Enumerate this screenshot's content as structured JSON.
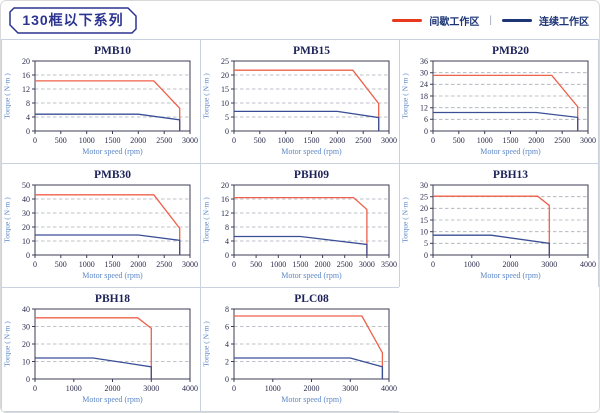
{
  "header": {
    "title": "130框以下系列",
    "legend": [
      {
        "label": "间歇工作区",
        "color": "#e8391d"
      },
      {
        "label": "连续工作区",
        "color": "#1d3575"
      }
    ],
    "legend_separator": "|"
  },
  "colors": {
    "intermittent_line": "#ee614a",
    "continuous_line": "#3a4e96",
    "grid": "#a8aeb6",
    "axis": "#3c3c55",
    "tick_text": "#2c2c4e",
    "axis_label": "#5b87c5",
    "title_text": "#1c2258",
    "panel_border": "#c9d2e0",
    "badge_border": "#2b3490"
  },
  "chart_data": [
    {
      "type": "line",
      "title": "PMB10",
      "xlabel": "Motor speed (rpm)",
      "ylabel": "Torque ( N·m )",
      "xlim": [
        0,
        3000
      ],
      "ylim": [
        0,
        20
      ],
      "xticks": [
        0,
        500,
        1000,
        1500,
        2000,
        2500,
        3000
      ],
      "yticks": [
        0,
        4,
        8,
        12,
        16,
        20
      ],
      "grid": "horizontal-dashed",
      "legend_position": "none",
      "series": [
        {
          "name": "间歇工作区",
          "points": [
            [
              0,
              14.3
            ],
            [
              2300,
              14.3
            ],
            [
              2800,
              6.5
            ],
            [
              2800,
              0
            ]
          ]
        },
        {
          "name": "连续工作区",
          "points": [
            [
              0,
              4.8
            ],
            [
              2000,
              4.8
            ],
            [
              2800,
              3.2
            ],
            [
              2800,
              0
            ]
          ]
        }
      ]
    },
    {
      "type": "line",
      "title": "PMB15",
      "xlabel": "Motor speed (rpm)",
      "ylabel": "Torque ( N·m )",
      "xlim": [
        0,
        3000
      ],
      "ylim": [
        0,
        25
      ],
      "xticks": [
        0,
        500,
        1000,
        1500,
        2000,
        2500,
        3000
      ],
      "yticks": [
        0,
        5,
        10,
        15,
        20,
        25
      ],
      "grid": "horizontal-dashed",
      "legend_position": "none",
      "series": [
        {
          "name": "间歇工作区",
          "points": [
            [
              0,
              21.7
            ],
            [
              2300,
              21.7
            ],
            [
              2800,
              9.8
            ],
            [
              2800,
              0
            ]
          ]
        },
        {
          "name": "连续工作区",
          "points": [
            [
              0,
              7
            ],
            [
              2000,
              7
            ],
            [
              2800,
              4.8
            ],
            [
              2800,
              0
            ]
          ]
        }
      ]
    },
    {
      "type": "line",
      "title": "PMB20",
      "xlabel": "Motor speed (rpm)",
      "ylabel": "Torque ( N·m )",
      "xlim": [
        0,
        3000
      ],
      "ylim": [
        0,
        36
      ],
      "xticks": [
        0,
        500,
        1000,
        1500,
        2000,
        2500,
        3000
      ],
      "yticks": [
        0,
        6,
        12,
        18,
        24,
        30,
        36
      ],
      "grid": "horizontal-dashed",
      "legend_position": "none",
      "series": [
        {
          "name": "间歇工作区",
          "points": [
            [
              0,
              28.6
            ],
            [
              2300,
              28.6
            ],
            [
              2800,
              12.5
            ],
            [
              2800,
              0
            ]
          ]
        },
        {
          "name": "连续工作区",
          "points": [
            [
              0,
              9.5
            ],
            [
              2000,
              9.5
            ],
            [
              2800,
              7
            ],
            [
              2800,
              0
            ]
          ]
        }
      ]
    },
    {
      "type": "line",
      "title": "PMB30",
      "xlabel": "Motor speed (rpm)",
      "ylabel": "Torque ( N·m )",
      "xlim": [
        0,
        3000
      ],
      "ylim": [
        0,
        50
      ],
      "xticks": [
        0,
        500,
        1000,
        1500,
        2000,
        2500,
        3000
      ],
      "yticks": [
        0,
        10,
        20,
        30,
        40,
        50
      ],
      "grid": "horizontal-dashed",
      "legend_position": "none",
      "series": [
        {
          "name": "间歇工作区",
          "points": [
            [
              0,
              43
            ],
            [
              2300,
              43
            ],
            [
              2800,
              19
            ],
            [
              2800,
              0
            ]
          ]
        },
        {
          "name": "连续工作区",
          "points": [
            [
              0,
              14.3
            ],
            [
              2000,
              14.3
            ],
            [
              2800,
              10.5
            ],
            [
              2800,
              0
            ]
          ]
        }
      ]
    },
    {
      "type": "line",
      "title": "PBH09",
      "xlabel": "Motor speed (rpm)",
      "ylabel": "Torque ( N·m )",
      "xlim": [
        0,
        3500
      ],
      "ylim": [
        0,
        20
      ],
      "xticks": [
        0,
        500,
        1000,
        1500,
        2000,
        2500,
        3000,
        3500
      ],
      "yticks": [
        0,
        4,
        8,
        12,
        16,
        20
      ],
      "grid": "horizontal-dashed",
      "legend_position": "none",
      "series": [
        {
          "name": "间歇工作区",
          "points": [
            [
              0,
              16.4
            ],
            [
              2700,
              16.4
            ],
            [
              3000,
              13
            ],
            [
              3000,
              0
            ]
          ]
        },
        {
          "name": "连续工作区",
          "points": [
            [
              0,
              5.3
            ],
            [
              1500,
              5.3
            ],
            [
              3000,
              3
            ],
            [
              3000,
              0
            ]
          ]
        }
      ]
    },
    {
      "type": "line",
      "title": "PBH13",
      "xlabel": "Motor speed (rpm)",
      "ylabel": "Torque ( N·m )",
      "xlim": [
        0,
        4000
      ],
      "ylim": [
        0,
        30
      ],
      "xticks": [
        0,
        1000,
        2000,
        3000,
        4000
      ],
      "yticks": [
        0,
        5,
        10,
        15,
        20,
        25,
        30
      ],
      "grid": "horizontal-dashed",
      "legend_position": "none",
      "series": [
        {
          "name": "间歇工作区",
          "points": [
            [
              0,
              25.2
            ],
            [
              2700,
              25.2
            ],
            [
              3000,
              21.2
            ],
            [
              3000,
              0
            ]
          ]
        },
        {
          "name": "连续工作区",
          "points": [
            [
              0,
              8.5
            ],
            [
              1500,
              8.5
            ],
            [
              3000,
              5
            ],
            [
              3000,
              0
            ]
          ]
        }
      ]
    },
    {
      "type": "line",
      "title": "PBH18",
      "xlabel": "Motor speed (rpm)",
      "ylabel": "Torque ( N·m )",
      "xlim": [
        0,
        4000
      ],
      "ylim": [
        0,
        40
      ],
      "xticks": [
        0,
        1000,
        2000,
        3000,
        4000
      ],
      "yticks": [
        0,
        10,
        20,
        30,
        40
      ],
      "grid": "horizontal-dashed",
      "legend_position": "none",
      "series": [
        {
          "name": "间歇工作区",
          "points": [
            [
              0,
              35
            ],
            [
              2650,
              35
            ],
            [
              3000,
              29
            ],
            [
              3000,
              0
            ]
          ]
        },
        {
          "name": "连续工作区",
          "points": [
            [
              0,
              12
            ],
            [
              1500,
              12
            ],
            [
              3000,
              7
            ],
            [
              3000,
              0
            ]
          ]
        }
      ]
    },
    {
      "type": "line",
      "title": "PLC08",
      "xlabel": "Motor speed (rpm)",
      "ylabel": "Torque ( N·m )",
      "xlim": [
        0,
        4000
      ],
      "ylim": [
        0,
        8
      ],
      "xticks": [
        0,
        1000,
        2000,
        3000,
        4000
      ],
      "yticks": [
        0,
        2,
        4,
        6,
        8
      ],
      "grid": "horizontal-dashed",
      "legend_position": "none",
      "series": [
        {
          "name": "间歇工作区",
          "points": [
            [
              0,
              7.2
            ],
            [
              3300,
              7.2
            ],
            [
              3830,
              3
            ],
            [
              3830,
              0
            ]
          ]
        },
        {
          "name": "连续工作区",
          "points": [
            [
              0,
              2.4
            ],
            [
              3000,
              2.4
            ],
            [
              3830,
              1.4
            ],
            [
              3830,
              0
            ]
          ]
        }
      ]
    }
  ]
}
